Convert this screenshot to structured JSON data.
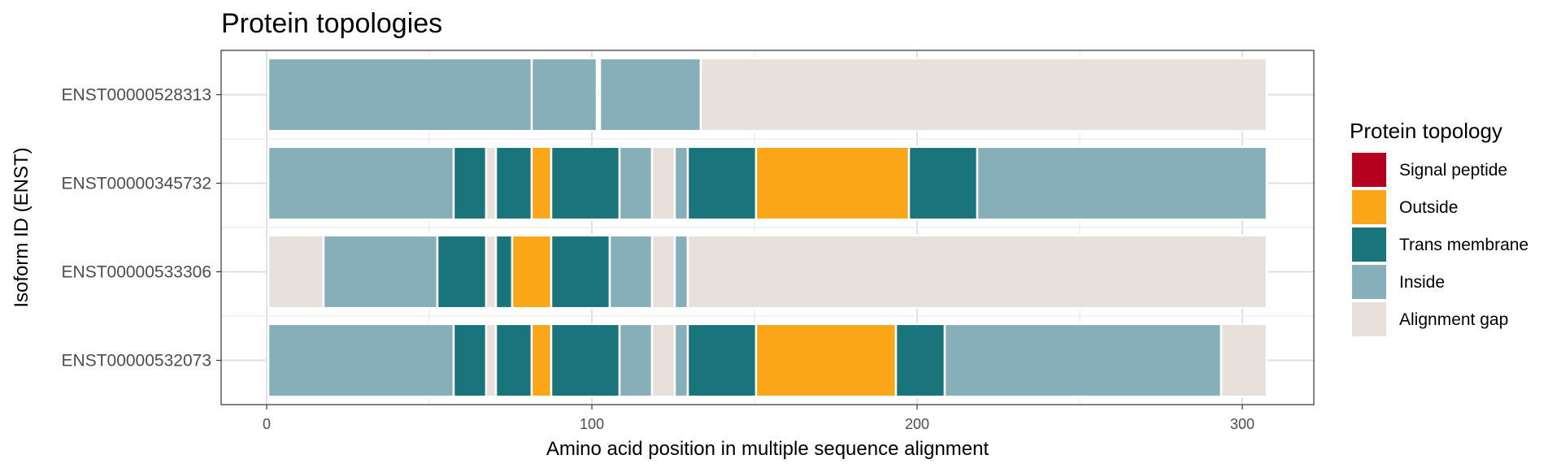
{
  "chart_data": {
    "type": "bar",
    "orientation": "horizontal-stacked-segments",
    "title": "Protein topologies",
    "xlabel": "Amino acid position in multiple sequence alignment",
    "ylabel": "Isoform ID (ENST)",
    "xlim": [
      -14,
      322
    ],
    "x_ticks": [
      0,
      100,
      200,
      300
    ],
    "x_tick_labels": [
      "0",
      "100",
      "200",
      "300"
    ],
    "grid": true,
    "legend": {
      "title": "Protein topology",
      "placement": "right",
      "items": [
        {
          "label": "Signal peptide",
          "color": "#B5001F"
        },
        {
          "label": "Outside",
          "color": "#FBA619"
        },
        {
          "label": "Trans membrane",
          "color": "#1A747B"
        },
        {
          "label": "Inside",
          "color": "#87AFB9"
        },
        {
          "label": "Alignment gap",
          "color": "#E8E0DB"
        }
      ]
    },
    "categories": [
      "ENST00000528313",
      "ENST00000345732",
      "ENST00000533306",
      "ENST00000532073"
    ],
    "rows": [
      {
        "id": "ENST00000528313",
        "segments": [
          {
            "start": 1,
            "end": 81,
            "topology": "Inside"
          },
          {
            "start": 82,
            "end": 101,
            "topology": "Inside"
          },
          {
            "start": 103,
            "end": 133,
            "topology": "Inside"
          },
          {
            "start": 134,
            "end": 307,
            "topology": "Alignment gap"
          }
        ]
      },
      {
        "id": "ENST00000345732",
        "segments": [
          {
            "start": 1,
            "end": 57,
            "topology": "Inside"
          },
          {
            "start": 58,
            "end": 67,
            "topology": "Trans membrane"
          },
          {
            "start": 68,
            "end": 70,
            "topology": "Alignment gap"
          },
          {
            "start": 71,
            "end": 81,
            "topology": "Trans membrane"
          },
          {
            "start": 82,
            "end": 87,
            "topology": "Outside"
          },
          {
            "start": 88,
            "end": 108,
            "topology": "Trans membrane"
          },
          {
            "start": 109,
            "end": 118,
            "topology": "Inside"
          },
          {
            "start": 119,
            "end": 125,
            "topology": "Alignment gap"
          },
          {
            "start": 126,
            "end": 129,
            "topology": "Inside"
          },
          {
            "start": 130,
            "end": 150,
            "topology": "Trans membrane"
          },
          {
            "start": 151,
            "end": 197,
            "topology": "Outside"
          },
          {
            "start": 198,
            "end": 218,
            "topology": "Trans membrane"
          },
          {
            "start": 219,
            "end": 307,
            "topology": "Inside"
          }
        ]
      },
      {
        "id": "ENST00000533306",
        "segments": [
          {
            "start": 1,
            "end": 17,
            "topology": "Alignment gap"
          },
          {
            "start": 18,
            "end": 52,
            "topology": "Inside"
          },
          {
            "start": 53,
            "end": 67,
            "topology": "Trans membrane"
          },
          {
            "start": 68,
            "end": 70,
            "topology": "Alignment gap"
          },
          {
            "start": 71,
            "end": 75,
            "topology": "Trans membrane"
          },
          {
            "start": 76,
            "end": 87,
            "topology": "Outside"
          },
          {
            "start": 88,
            "end": 105,
            "topology": "Trans membrane"
          },
          {
            "start": 106,
            "end": 118,
            "topology": "Inside"
          },
          {
            "start": 119,
            "end": 125,
            "topology": "Alignment gap"
          },
          {
            "start": 126,
            "end": 129,
            "topology": "Inside"
          },
          {
            "start": 130,
            "end": 307,
            "topology": "Alignment gap"
          }
        ]
      },
      {
        "id": "ENST00000532073",
        "segments": [
          {
            "start": 1,
            "end": 57,
            "topology": "Inside"
          },
          {
            "start": 58,
            "end": 67,
            "topology": "Trans membrane"
          },
          {
            "start": 68,
            "end": 70,
            "topology": "Alignment gap"
          },
          {
            "start": 71,
            "end": 81,
            "topology": "Trans membrane"
          },
          {
            "start": 82,
            "end": 87,
            "topology": "Outside"
          },
          {
            "start": 88,
            "end": 108,
            "topology": "Trans membrane"
          },
          {
            "start": 109,
            "end": 118,
            "topology": "Inside"
          },
          {
            "start": 119,
            "end": 125,
            "topology": "Alignment gap"
          },
          {
            "start": 126,
            "end": 129,
            "topology": "Inside"
          },
          {
            "start": 130,
            "end": 150,
            "topology": "Trans membrane"
          },
          {
            "start": 151,
            "end": 193,
            "topology": "Outside"
          },
          {
            "start": 194,
            "end": 208,
            "topology": "Trans membrane"
          },
          {
            "start": 209,
            "end": 293,
            "topology": "Inside"
          },
          {
            "start": 294,
            "end": 307,
            "topology": "Alignment gap"
          }
        ]
      }
    ]
  }
}
